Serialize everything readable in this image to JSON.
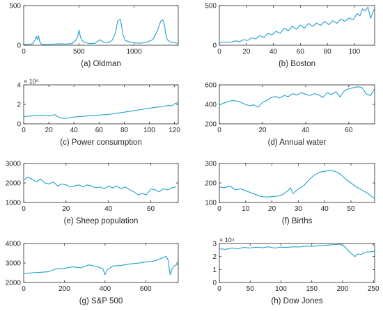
{
  "chart_data": [
    {
      "type": "line",
      "title": "(a) Oldman",
      "xlim": [
        0,
        1400
      ],
      "ylim": [
        0,
        500
      ],
      "xticks": [
        0,
        500,
        1000
      ],
      "yticks": [
        0,
        500
      ],
      "exponent": "",
      "color": "#1fa0cf",
      "x": [
        0,
        40,
        80,
        100,
        115,
        125,
        135,
        145,
        160,
        200,
        260,
        320,
        380,
        440,
        470,
        490,
        500,
        510,
        520,
        540,
        570,
        600,
        650,
        690,
        720,
        760,
        800,
        830,
        850,
        865,
        875,
        885,
        900,
        920,
        960,
        1000,
        1060,
        1120,
        1170,
        1210,
        1240,
        1260,
        1275,
        1285,
        1300,
        1330,
        1370,
        1400
      ],
      "y": [
        12,
        10,
        18,
        60,
        110,
        70,
        120,
        50,
        15,
        10,
        12,
        18,
        15,
        20,
        60,
        110,
        190,
        130,
        80,
        45,
        30,
        20,
        25,
        70,
        40,
        30,
        60,
        150,
        300,
        320,
        330,
        260,
        130,
        60,
        40,
        30,
        25,
        40,
        70,
        180,
        300,
        320,
        260,
        150,
        70,
        40,
        30,
        25
      ]
    },
    {
      "type": "line",
      "title": "(b) Boston",
      "xlim": [
        0,
        115
      ],
      "ylim": [
        0,
        500
      ],
      "xticks": [
        0,
        20,
        40,
        60,
        80,
        100
      ],
      "yticks": [
        0,
        500
      ],
      "exponent": "",
      "color": "#1fa0cf",
      "x": [
        0,
        4,
        8,
        12,
        15,
        18,
        21,
        24,
        27,
        30,
        33,
        36,
        39,
        42,
        45,
        48,
        51,
        54,
        57,
        60,
        63,
        66,
        69,
        72,
        75,
        78,
        81,
        84,
        87,
        90,
        93,
        96,
        99,
        102,
        104,
        106,
        108,
        110,
        112,
        115
      ],
      "y": [
        30,
        40,
        35,
        55,
        45,
        70,
        60,
        95,
        80,
        120,
        100,
        150,
        130,
        175,
        150,
        215,
        180,
        240,
        200,
        255,
        215,
        275,
        235,
        280,
        250,
        300,
        260,
        310,
        275,
        330,
        300,
        345,
        320,
        400,
        370,
        460,
        430,
        480,
        340,
        470
      ]
    },
    {
      "type": "line",
      "title": "(c) Power consumption",
      "xlim": [
        0,
        123
      ],
      "ylim": [
        0,
        4
      ],
      "xticks": [
        0,
        20,
        40,
        60,
        80,
        100,
        120
      ],
      "yticks": [
        0,
        2,
        4
      ],
      "exponent": "× 10⁵",
      "color": "#1fa0cf",
      "x": [
        0,
        5,
        10,
        15,
        20,
        25,
        28,
        32,
        35,
        40,
        45,
        50,
        55,
        60,
        65,
        70,
        75,
        80,
        85,
        90,
        95,
        100,
        105,
        110,
        115,
        118,
        120,
        123
      ],
      "y": [
        0.75,
        0.8,
        0.85,
        0.9,
        0.8,
        0.95,
        0.65,
        0.55,
        0.6,
        0.7,
        0.75,
        0.8,
        0.85,
        0.9,
        0.95,
        1.0,
        1.1,
        1.2,
        1.3,
        1.4,
        1.5,
        1.6,
        1.7,
        1.75,
        1.9,
        1.85,
        2.05,
        2.2
      ]
    },
    {
      "type": "line",
      "title": "(d) Annual water",
      "xlim": [
        0,
        72
      ],
      "ylim": [
        200,
        600
      ],
      "xticks": [
        0,
        20,
        40,
        60
      ],
      "yticks": [
        200,
        400,
        600
      ],
      "exponent": "",
      "color": "#1fa0cf",
      "x": [
        0,
        3,
        6,
        9,
        12,
        14,
        16,
        18,
        20,
        22,
        24,
        26,
        28,
        30,
        32,
        34,
        36,
        38,
        40,
        42,
        44,
        46,
        48,
        50,
        52,
        54,
        56,
        58,
        60,
        62,
        64,
        66,
        68,
        70,
        72
      ],
      "y": [
        395,
        420,
        440,
        430,
        400,
        385,
        395,
        370,
        420,
        440,
        470,
        480,
        465,
        490,
        480,
        510,
        495,
        520,
        505,
        490,
        510,
        500,
        470,
        520,
        500,
        530,
        475,
        540,
        560,
        570,
        580,
        575,
        510,
        490,
        560
      ]
    },
    {
      "type": "line",
      "title": "(e) Sheep population",
      "xlim": [
        0,
        73
      ],
      "ylim": [
        1000,
        3000
      ],
      "xticks": [
        0,
        20,
        40,
        60
      ],
      "yticks": [
        1000,
        2000,
        3000
      ],
      "exponent": "",
      "color": "#1fa0cf",
      "x": [
        0,
        2,
        4,
        6,
        8,
        10,
        12,
        14,
        16,
        18,
        20,
        22,
        24,
        26,
        28,
        30,
        32,
        34,
        36,
        38,
        40,
        42,
        44,
        46,
        48,
        50,
        52,
        54,
        56,
        58,
        60,
        62,
        64,
        66,
        68,
        70,
        72
      ],
      "y": [
        2150,
        2300,
        2200,
        2050,
        2200,
        2000,
        1950,
        2050,
        1850,
        1950,
        1900,
        1800,
        1850,
        1900,
        1800,
        1900,
        1850,
        1750,
        1800,
        1700,
        1850,
        1750,
        1850,
        1700,
        1800,
        1650,
        1550,
        1400,
        1450,
        1400,
        1700,
        1650,
        1550,
        1700,
        1650,
        1750,
        1800
      ]
    },
    {
      "type": "line",
      "title": "(f) Births",
      "xlim": [
        0,
        59
      ],
      "ylim": [
        100,
        300
      ],
      "xticks": [
        0,
        10,
        20,
        30,
        40,
        50
      ],
      "yticks": [
        100,
        200,
        300
      ],
      "exponent": "",
      "color": "#1fa0cf",
      "x": [
        0,
        2,
        4,
        6,
        8,
        10,
        12,
        14,
        16,
        18,
        20,
        22,
        24,
        26,
        27,
        28,
        30,
        32,
        34,
        36,
        38,
        40,
        42,
        44,
        46,
        48,
        50,
        52,
        54,
        56,
        58,
        59
      ],
      "y": [
        180,
        175,
        185,
        165,
        170,
        160,
        150,
        140,
        130,
        128,
        130,
        132,
        140,
        160,
        175,
        145,
        170,
        185,
        215,
        240,
        255,
        260,
        265,
        260,
        245,
        220,
        200,
        180,
        165,
        150,
        130,
        120
      ]
    },
    {
      "type": "line",
      "title": "(g) S&P 500",
      "xlim": [
        0,
        760
      ],
      "ylim": [
        2000,
        4000
      ],
      "xticks": [
        0,
        200,
        400,
        600
      ],
      "yticks": [
        2000,
        3000,
        4000
      ],
      "exponent": "",
      "color": "#1fa0cf",
      "x": [
        0,
        40,
        80,
        120,
        160,
        200,
        240,
        280,
        320,
        360,
        390,
        400,
        410,
        440,
        480,
        520,
        560,
        600,
        640,
        680,
        700,
        710,
        720,
        730,
        740,
        760
      ],
      "y": [
        2450,
        2500,
        2520,
        2550,
        2700,
        2720,
        2800,
        2750,
        2900,
        2820,
        2700,
        2400,
        2650,
        2850,
        2880,
        2950,
        2990,
        3050,
        3100,
        3250,
        3350,
        3150,
        2400,
        2700,
        2850,
        2950
      ]
    },
    {
      "type": "line",
      "title": "(h) Dow Jones",
      "xlim": [
        0,
        252
      ],
      "ylim": [
        0,
        30000
      ],
      "xticks": [
        0,
        50,
        100,
        150,
        200,
        250
      ],
      "yticks": [
        0,
        10000,
        20000,
        30000
      ],
      "exponent": "× 10⁴",
      "color": "#1fa0cf",
      "x": [
        0,
        10,
        20,
        30,
        40,
        50,
        60,
        70,
        80,
        90,
        100,
        110,
        120,
        130,
        140,
        150,
        160,
        170,
        180,
        190,
        195,
        200,
        205,
        210,
        215,
        220,
        225,
        230,
        235,
        240,
        245,
        252
      ],
      "y": [
        26000,
        25500,
        26500,
        26000,
        27000,
        26500,
        27200,
        26800,
        27500,
        26500,
        27200,
        27000,
        27500,
        27300,
        28000,
        27800,
        28300,
        28500,
        29000,
        29200,
        29500,
        28500,
        27000,
        24000,
        22000,
        20000,
        22000,
        21500,
        23000,
        23500,
        23500,
        24000
      ]
    }
  ]
}
